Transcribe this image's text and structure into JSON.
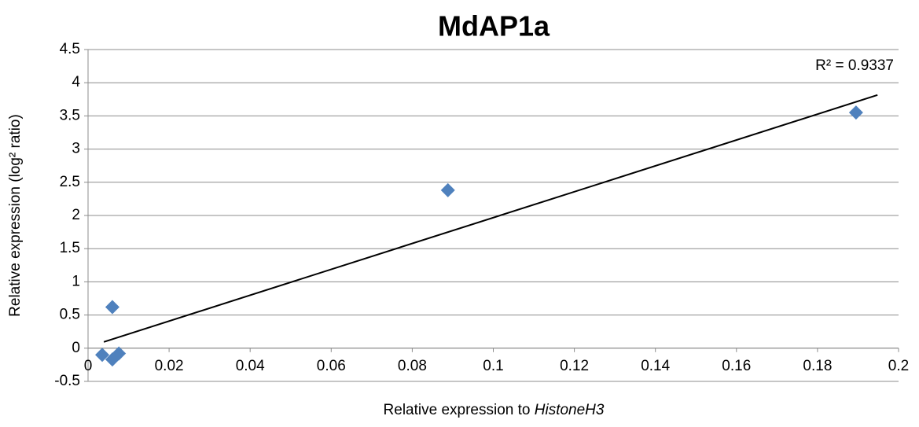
{
  "chart_data": {
    "type": "scatter",
    "title": "MdAP1a",
    "xlabel": [
      "Relative expression  to ",
      "HistoneH3"
    ],
    "ylabel": "Relative expression (log² ratio)",
    "series": [
      {
        "name": "MdAP1a",
        "color": "#4f81bd",
        "x": [
          0.0035,
          0.006,
          0.006,
          0.0076,
          0.0888,
          0.1895
        ],
        "values": [
          -0.1,
          0.62,
          -0.17,
          -0.08,
          2.38,
          3.55
        ]
      }
    ],
    "trendline": {
      "x": [
        0.0039,
        0.1948
      ],
      "values": [
        0.095,
        3.815
      ],
      "color": "#000000",
      "label": "R² = 0.9337"
    },
    "xlim": [
      0,
      0.2
    ],
    "xticks": [
      0,
      0.02,
      0.04,
      0.06,
      0.08,
      0.1,
      0.12,
      0.14,
      0.16,
      0.18,
      0.2
    ],
    "ylim": [
      -0.5,
      4.5
    ],
    "yticks": [
      -0.5,
      0,
      0.5,
      1,
      1.5,
      2,
      2.5,
      3,
      3.5,
      4,
      4.5
    ],
    "grid": true
  }
}
